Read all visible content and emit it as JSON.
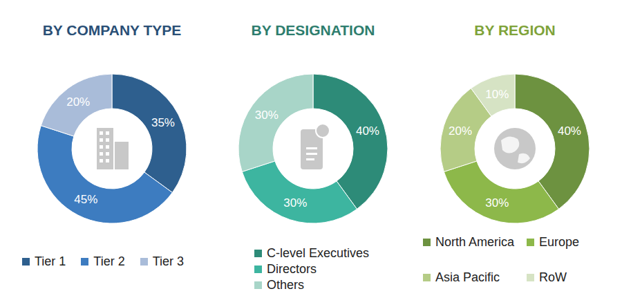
{
  "chart_data": [
    {
      "type": "donut",
      "title": "BY COMPANY TYPE",
      "categories": [
        "Tier 1",
        "Tier 2",
        "Tier 3"
      ],
      "values": [
        35,
        45,
        20
      ],
      "value_labels": [
        "35%",
        "45%",
        "20%"
      ],
      "colors": [
        "#2E5F8E",
        "#3D7CC0",
        "#A9BCD9"
      ],
      "data_labels": true
    },
    {
      "type": "donut",
      "title": "BY DESIGNATION",
      "categories": [
        "C-level Executives",
        "Directors",
        "Others"
      ],
      "values": [
        40,
        30,
        30
      ],
      "value_labels": [
        "40%",
        "30%",
        "30%"
      ],
      "colors": [
        "#2D8B78",
        "#3DB5A0",
        "#A8D5C8"
      ],
      "data_labels": true
    },
    {
      "type": "donut",
      "title": "BY REGION",
      "categories": [
        "North America",
        "Europe",
        "Asia Pacific",
        "RoW"
      ],
      "values": [
        40,
        30,
        20,
        10
      ],
      "value_labels": [
        "40%",
        "30%",
        "20%",
        "10%"
      ],
      "colors": [
        "#6D9240",
        "#8DB84A",
        "#B5CC86",
        "#D6E3C4"
      ],
      "data_labels": true
    }
  ]
}
